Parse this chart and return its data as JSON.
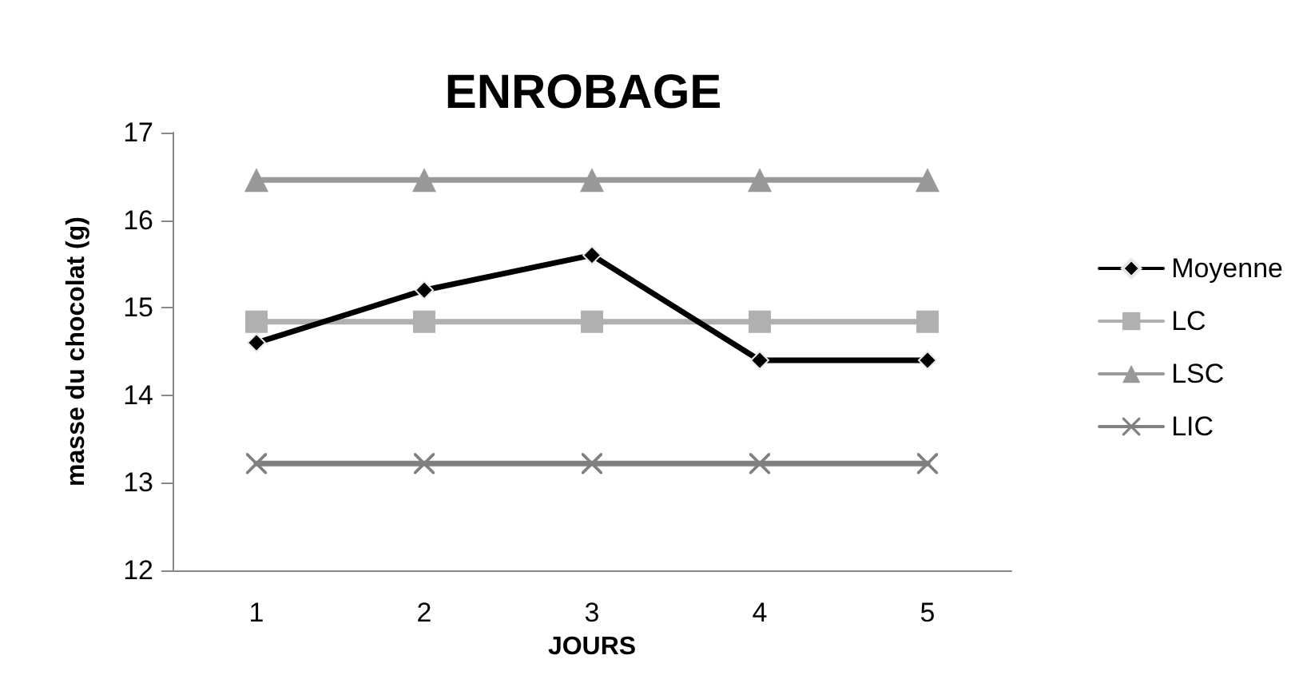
{
  "chart_data": {
    "type": "line",
    "title": "ENROBAGE",
    "xlabel": "JOURS",
    "ylabel": "masse du chocolat (g)",
    "categories": [
      "1",
      "2",
      "3",
      "4",
      "5"
    ],
    "series": [
      {
        "name": "Moyenne",
        "color": "#000000",
        "marker": "diamond",
        "values": [
          14.6,
          15.2,
          15.6,
          14.4,
          14.4
        ]
      },
      {
        "name": "LC",
        "color": "#b0b0b0",
        "marker": "square",
        "values": [
          14.84,
          14.84,
          14.84,
          14.84,
          14.84
        ]
      },
      {
        "name": "LSC",
        "color": "#999999",
        "marker": "triangle",
        "values": [
          16.46,
          16.46,
          16.46,
          16.46,
          16.46
        ]
      },
      {
        "name": "LIC",
        "color": "#808080",
        "marker": "cross",
        "values": [
          13.22,
          13.22,
          13.22,
          13.22,
          13.22
        ]
      }
    ],
    "ylim": [
      12,
      17
    ],
    "yticks": [
      12,
      13,
      14,
      15,
      16,
      17
    ],
    "grid": false,
    "legend": "right"
  }
}
